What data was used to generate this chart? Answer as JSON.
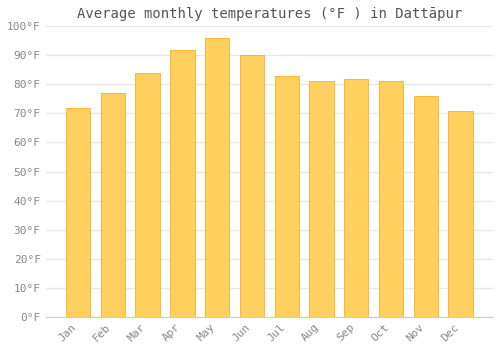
{
  "title": "Average monthly temperatures (°F ) in Dattāpur",
  "months": [
    "Jan",
    "Feb",
    "Mar",
    "Apr",
    "May",
    "Jun",
    "Jul",
    "Aug",
    "Sep",
    "Oct",
    "Nov",
    "Dec"
  ],
  "values": [
    72,
    77,
    84,
    92,
    96,
    90,
    83,
    81,
    82,
    81,
    76,
    71
  ],
  "bar_color_top": "#FFA500",
  "bar_color_bottom": "#FFD060",
  "bar_edge_color": "#FFA500",
  "ylim": [
    0,
    100
  ],
  "yticks": [
    0,
    10,
    20,
    30,
    40,
    50,
    60,
    70,
    80,
    90,
    100
  ],
  "ytick_labels": [
    "0°F",
    "10°F",
    "20°F",
    "30°F",
    "40°F",
    "50°F",
    "60°F",
    "70°F",
    "80°F",
    "90°F",
    "100°F"
  ],
  "background_color": "#ffffff",
  "grid_color": "#e8e8e8",
  "title_fontsize": 10,
  "tick_fontsize": 8,
  "tick_color": "#888888",
  "bar_width": 0.7
}
